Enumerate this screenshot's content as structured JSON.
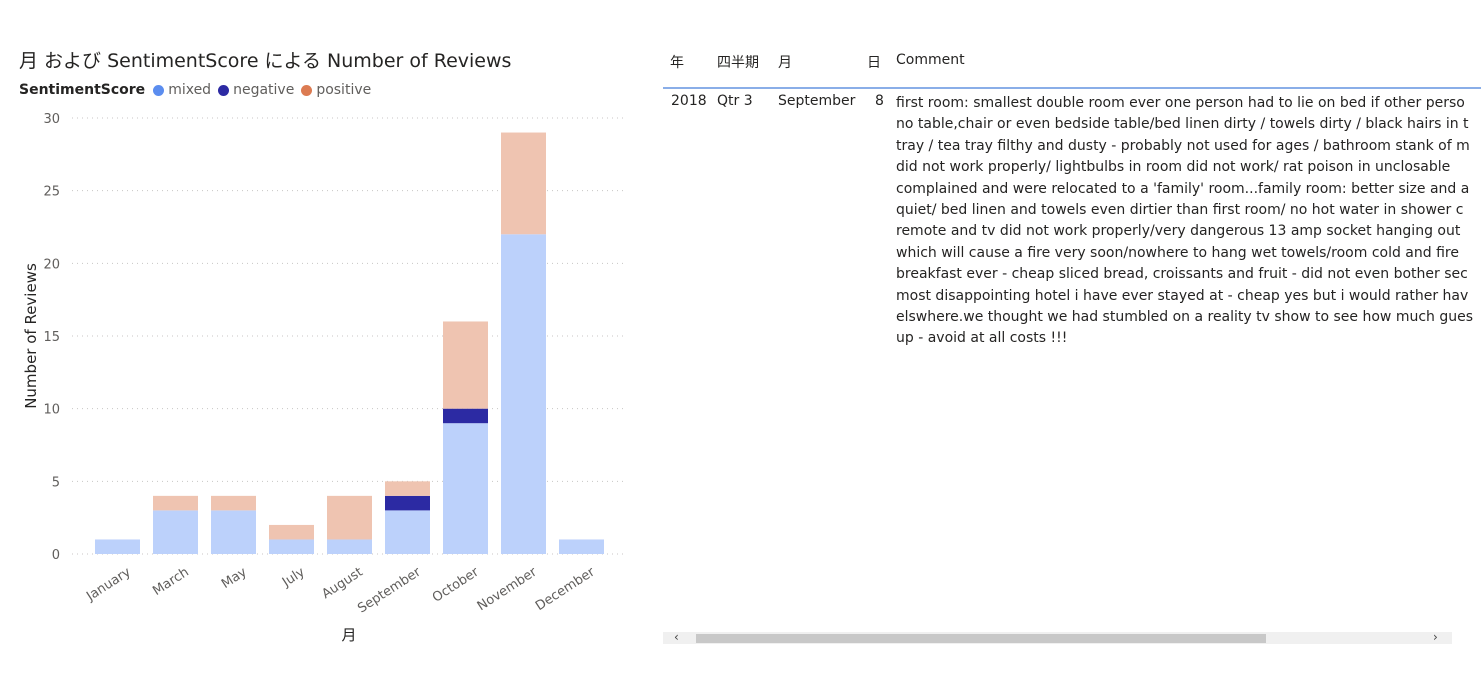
{
  "chart": {
    "title": "月 および SentimentScore による Number of Reviews",
    "legend_title": "SentimentScore",
    "legend": [
      {
        "label": "mixed",
        "color": "#5b8def"
      },
      {
        "label": "negative",
        "color": "#2c2aa3"
      },
      {
        "label": "positive",
        "color": "#dc7b52"
      }
    ]
  },
  "chart_data": {
    "type": "bar",
    "stacked": true,
    "title": "月 および SentimentScore による Number of Reviews",
    "xlabel": "月",
    "ylabel": "Number of Reviews",
    "ylim": [
      0,
      30
    ],
    "yticks": [
      0,
      5,
      10,
      15,
      20,
      25,
      30
    ],
    "grid": true,
    "legend_position": "top-left",
    "categories": [
      "January",
      "March",
      "May",
      "July",
      "August",
      "September",
      "October",
      "November",
      "December"
    ],
    "series": [
      {
        "name": "mixed",
        "color": "#bcd1fb",
        "values": [
          1,
          3,
          3,
          1,
          1,
          3,
          9,
          22,
          1
        ]
      },
      {
        "name": "negative",
        "color": "#2c2aa3",
        "values": [
          0,
          0,
          0,
          0,
          0,
          1,
          1,
          0,
          0
        ]
      },
      {
        "name": "positive",
        "color": "#efc4b1",
        "values": [
          0,
          1,
          1,
          1,
          3,
          1,
          6,
          7,
          0
        ]
      }
    ]
  },
  "table": {
    "headers": [
      "年",
      "四半期",
      "月",
      "日",
      "Comment"
    ],
    "row": {
      "year": "2018",
      "quarter": "Qtr 3",
      "month": "September",
      "day": "8",
      "comment_lines": [
        "first room: smallest double room ever one person had to lie on bed if other perso",
        "no table,chair or even bedside table/bed linen dirty / towels dirty / black hairs in t",
        "tray / tea tray filthy and dusty - probably not used for ages / bathroom stank of m",
        "did not work properly/ lightbulbs in room did not work/ rat poison in unclosable",
        "complained and were relocated to a 'family' room...family room: better size and a",
        "quiet/ bed linen and towels even dirtier than first room/ no hot water in shower c",
        "remote and tv did not work properly/very dangerous 13 amp socket hanging out",
        "which will cause a fire very soon/nowhere to hang wet towels/room cold and fire",
        "breakfast ever - cheap sliced bread, croissants and fruit - did not even bother sec",
        "most disappointing hotel i have ever stayed at - cheap yes but i would rather hav",
        "elswhere.we thought we had stumbled on a reality tv show to see how much gues",
        "up - avoid at all costs !!!"
      ]
    }
  },
  "scrollbar": {
    "left_arrow": "‹",
    "right_arrow": "›"
  }
}
